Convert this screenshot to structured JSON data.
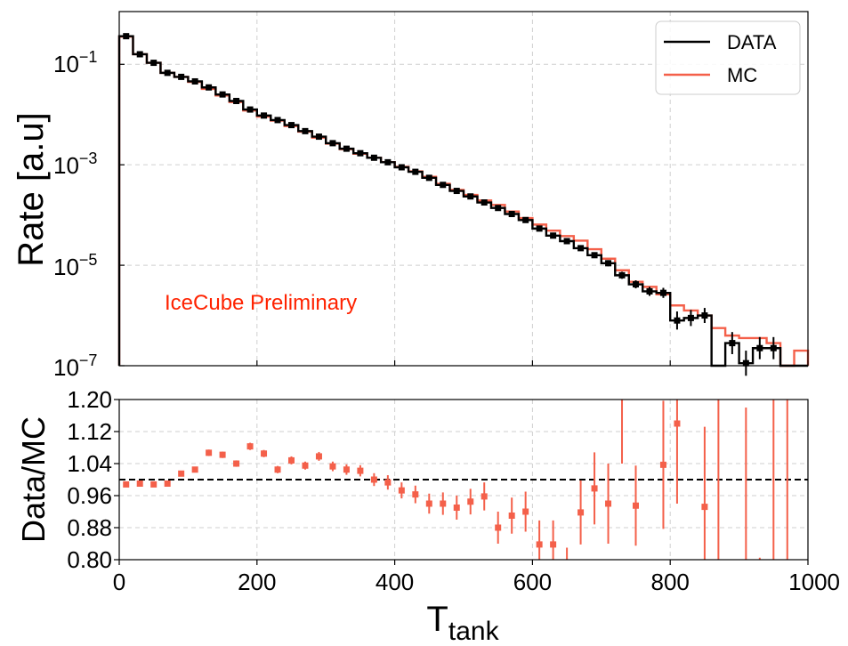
{
  "chart_data": [
    {
      "type": "line",
      "subtype": "step-histogram-log",
      "ylabel": "Rate [a.u]",
      "xlabel": "",
      "xlim": [
        0,
        1000
      ],
      "ylim_log10": [
        -7,
        0.05
      ],
      "ytick_labels": [
        {
          "base": "10",
          "exp": "−1",
          "value": -1
        },
        {
          "base": "10",
          "exp": "−3",
          "value": -3
        },
        {
          "base": "10",
          "exp": "−5",
          "value": -5
        },
        {
          "base": "10",
          "exp": "−7",
          "value": -7
        }
      ],
      "grid": true,
      "legend_position": "top-right",
      "annotation": "IceCube Preliminary",
      "annotation_color": "#ff2200",
      "bin_edges": [
        0,
        20,
        40,
        60,
        80,
        100,
        120,
        140,
        160,
        180,
        200,
        220,
        240,
        260,
        280,
        300,
        320,
        340,
        360,
        380,
        400,
        420,
        440,
        460,
        480,
        500,
        520,
        540,
        560,
        580,
        600,
        620,
        640,
        660,
        680,
        700,
        720,
        740,
        760,
        780,
        800,
        820,
        840,
        860,
        880,
        900,
        920,
        940,
        960,
        980,
        1000
      ],
      "series": [
        {
          "name": "DATA",
          "color": "#000000",
          "values": [
            -0.44,
            -0.8,
            -0.97,
            -1.17,
            -1.25,
            -1.34,
            -1.46,
            -1.6,
            -1.73,
            -1.9,
            -2.02,
            -2.11,
            -2.21,
            -2.33,
            -2.44,
            -2.57,
            -2.68,
            -2.77,
            -2.86,
            -2.95,
            -3.05,
            -3.14,
            -3.26,
            -3.4,
            -3.52,
            -3.63,
            -3.75,
            -3.86,
            -3.98,
            -4.1,
            -4.27,
            -4.41,
            -4.52,
            -4.66,
            -4.8,
            -4.96,
            -5.2,
            -5.38,
            -5.52,
            -5.55,
            -6.1,
            -6.05,
            -6.0,
            -7.0,
            -6.55,
            -6.95,
            -6.65,
            -6.65,
            -7.0,
            -7.0
          ],
          "error_half_width": [
            0.02,
            0.02,
            0.02,
            0.02,
            0.02,
            0.02,
            0.02,
            0.02,
            0.02,
            0.02,
            0.02,
            0.02,
            0.02,
            0.02,
            0.02,
            0.02,
            0.02,
            0.02,
            0.02,
            0.02,
            0.02,
            0.02,
            0.02,
            0.02,
            0.02,
            0.02,
            0.02,
            0.02,
            0.02,
            0.02,
            0.03,
            0.03,
            0.03,
            0.04,
            0.05,
            0.06,
            0.07,
            0.08,
            0.09,
            0.1,
            0.18,
            0.16,
            0.15,
            0,
            0.22,
            0.25,
            0.22,
            0.22,
            0,
            0
          ]
        },
        {
          "name": "MC",
          "color": "#f4604a",
          "values": [
            -0.45,
            -0.8,
            -0.97,
            -1.17,
            -1.25,
            -1.35,
            -1.49,
            -1.62,
            -1.75,
            -1.92,
            -2.04,
            -2.12,
            -2.23,
            -2.34,
            -2.46,
            -2.58,
            -2.69,
            -2.78,
            -2.86,
            -2.95,
            -3.04,
            -3.13,
            -3.24,
            -3.38,
            -3.5,
            -3.6,
            -3.71,
            -3.8,
            -3.93,
            -4.06,
            -4.19,
            -4.31,
            -4.42,
            -4.51,
            -4.68,
            -4.87,
            -5.1,
            -5.33,
            -5.43,
            -5.58,
            -5.8,
            -5.9,
            -6.0,
            -6.25,
            -6.4,
            -6.45,
            -6.45,
            -6.55,
            -7.0,
            -6.7
          ]
        }
      ]
    },
    {
      "type": "scatter",
      "subtype": "ratio-with-errorbars",
      "xlabel": "T",
      "xlabel_sub": "tank",
      "ylabel": "Data/MC",
      "xlim": [
        0,
        1000
      ],
      "ylim": [
        0.8,
        1.2
      ],
      "xtick_labels": [
        "0",
        "200",
        "400",
        "600",
        "800",
        "1000"
      ],
      "xtick_values": [
        0,
        200,
        400,
        600,
        800,
        1000
      ],
      "ytick_labels": [
        "0.80",
        "0.88",
        "0.96",
        "1.04",
        "1.12",
        "1.20"
      ],
      "ytick_values": [
        0.8,
        0.88,
        0.96,
        1.04,
        1.12,
        1.2
      ],
      "reference_line": 1.0,
      "grid": true,
      "color": "#f4604a",
      "x": [
        10,
        30,
        50,
        70,
        90,
        110,
        130,
        150,
        170,
        190,
        210,
        230,
        250,
        270,
        290,
        310,
        330,
        350,
        370,
        390,
        410,
        430,
        450,
        470,
        490,
        510,
        530,
        550,
        570,
        590,
        610,
        630,
        650,
        670,
        690,
        710,
        730,
        750,
        770,
        790,
        810,
        830,
        850,
        870,
        890,
        910,
        930,
        950,
        970,
        990
      ],
      "y": [
        0.988,
        0.99,
        0.988,
        0.99,
        1.015,
        1.025,
        1.067,
        1.062,
        1.04,
        1.083,
        1.065,
        1.025,
        1.048,
        1.035,
        1.058,
        1.033,
        1.025,
        1.022,
        1.0,
        0.993,
        0.973,
        0.963,
        0.94,
        0.94,
        0.93,
        0.945,
        0.958,
        0.88,
        0.91,
        0.92,
        0.838,
        0.838,
        null,
        0.918,
        0.978,
        0.94,
        null,
        0.935,
        null,
        1.037,
        1.14,
        null,
        0.932,
        null,
        null,
        null,
        null,
        null,
        null,
        null
      ],
      "yerr": [
        0.004,
        0.004,
        0.004,
        0.004,
        0.006,
        0.006,
        0.008,
        0.008,
        0.008,
        0.009,
        0.009,
        0.009,
        0.01,
        0.01,
        0.011,
        0.012,
        0.013,
        0.014,
        0.016,
        0.018,
        0.02,
        0.022,
        0.025,
        0.028,
        0.03,
        0.032,
        0.035,
        0.04,
        0.045,
        0.05,
        0.06,
        0.06,
        0.07,
        0.08,
        0.09,
        0.1,
        0.1,
        0.1,
        0.12,
        0.16,
        0.2,
        0.2,
        0.2,
        0.2,
        0.2,
        0.2,
        0.2,
        0.2,
        0.2,
        0.2
      ],
      "error_only_bars": [
        {
          "x": 650,
          "y_low": 0.8,
          "y_high": 0.83
        },
        {
          "x": 730,
          "y_low": 1.04,
          "y_high": 1.2
        },
        {
          "x": 870,
          "y_low": 0.8,
          "y_high": 1.2
        },
        {
          "x": 910,
          "y_low": 0.8,
          "y_high": 1.18
        },
        {
          "x": 930,
          "y_low": 0.8,
          "y_high": 0.805
        },
        {
          "x": 950,
          "y_low": 0.8,
          "y_high": 1.2
        },
        {
          "x": 970,
          "y_low": 0.8,
          "y_high": 1.2
        }
      ]
    }
  ]
}
